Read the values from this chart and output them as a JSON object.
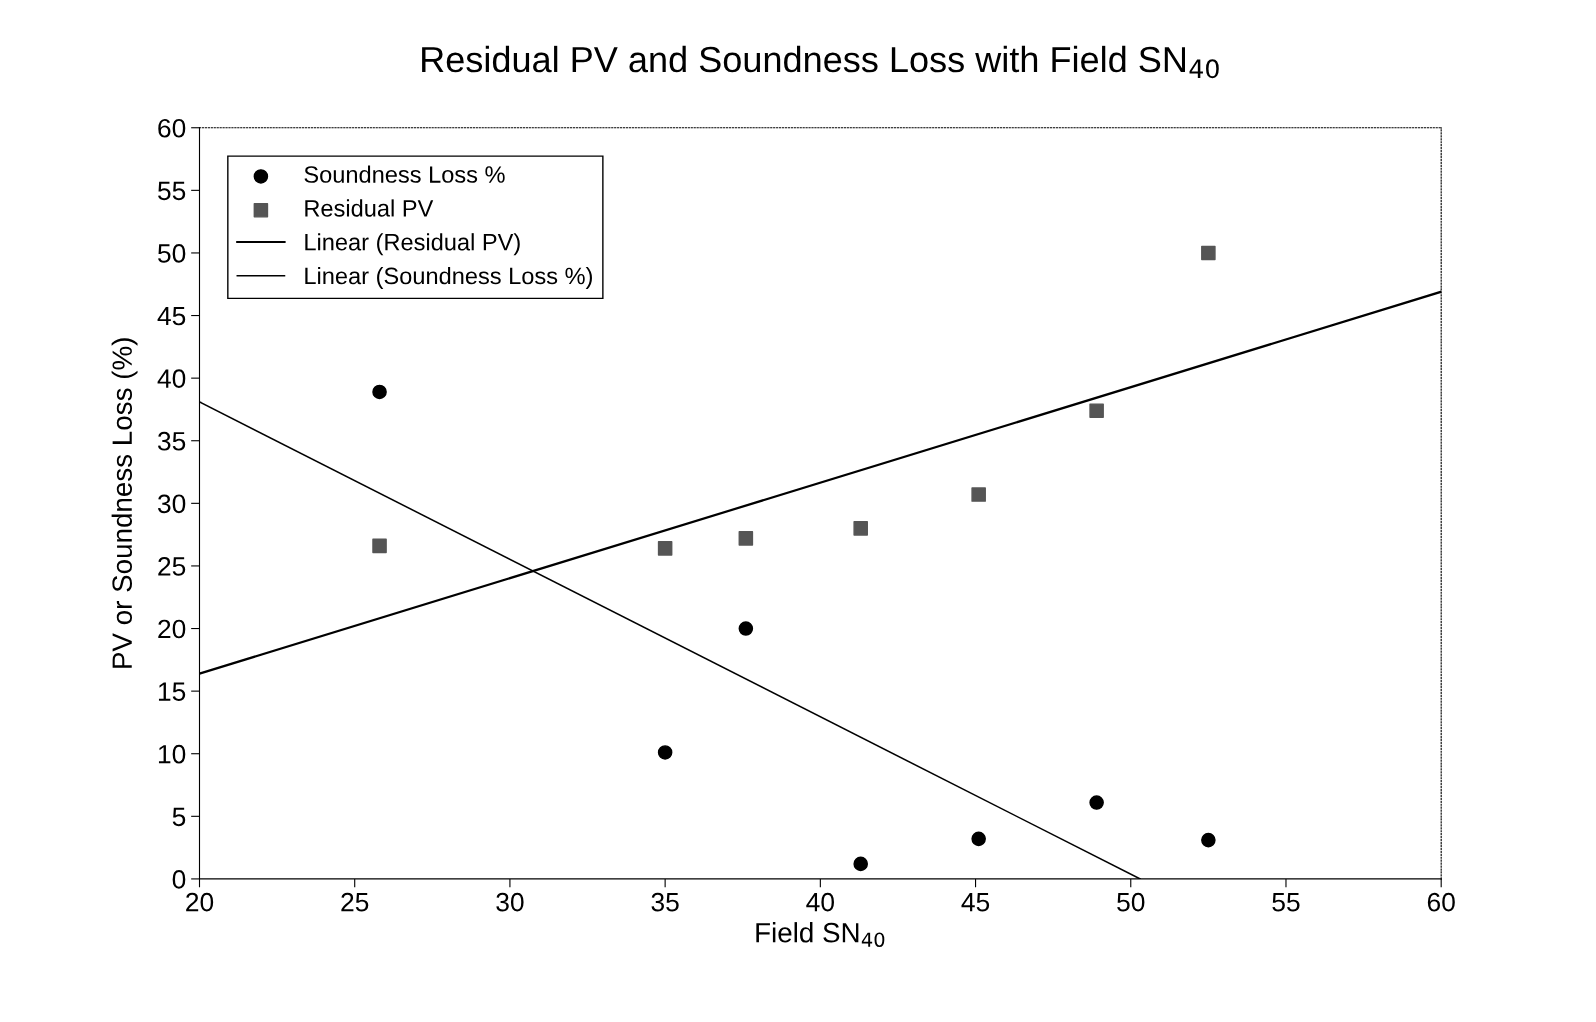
{
  "chart_data": {
    "type": "scatter",
    "title": "Residual PV and Soundness Loss with Field SN$_{40}$",
    "xlabel": "Field SN$_{40}$",
    "ylabel": "PV or Soundness Loss (%)",
    "xlim": [
      20,
      60
    ],
    "xticks": [
      20,
      25,
      30,
      35,
      40,
      45,
      50,
      55,
      60
    ],
    "ylim": [
      0,
      60
    ],
    "yticks": [
      0,
      5,
      10,
      15,
      20,
      25,
      30,
      35,
      40,
      45,
      50,
      55,
      60
    ],
    "grid": false,
    "legend": "top left",
    "series": [
      {
        "name": "Soundness Loss %",
        "marker": "circle",
        "color": "#000000",
        "x": [
          25.8,
          35.0,
          37.6,
          41.3,
          45.1,
          48.9,
          52.5
        ],
        "values": [
          38.9,
          10.1,
          20.0,
          1.2,
          3.2,
          6.1,
          3.1
        ]
      },
      {
        "name": "Residual PV",
        "marker": "square",
        "color": "#555555",
        "x": [
          25.8,
          35.0,
          37.6,
          41.3,
          45.1,
          48.9,
          52.5
        ],
        "values": [
          26.6,
          26.4,
          27.2,
          28.0,
          30.7,
          37.4,
          50.0
        ]
      },
      {
        "name": "Linear (Residual PV)",
        "type": "line",
        "marker": "none",
        "line_style": "solid",
        "color": "#000000",
        "x": [
          20,
          60
        ],
        "values": [
          16.4,
          46.9
        ]
      },
      {
        "name": "Linear (Soundness Loss %)",
        "type": "line",
        "marker": "none",
        "line_style": "solid",
        "color": "#000000",
        "x": [
          20,
          50.3
        ],
        "values": [
          38.1,
          0
        ]
      }
    ]
  }
}
